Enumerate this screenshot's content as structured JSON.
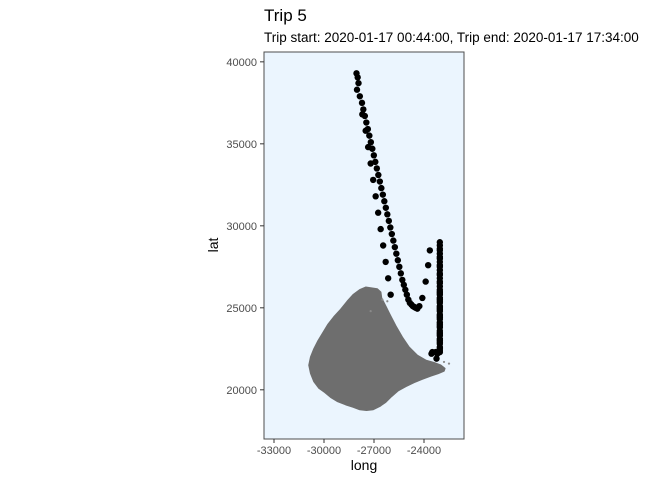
{
  "chart_data": {
    "type": "scatter",
    "title": "Trip 5",
    "subtitle": "Trip start: 2020-01-17 00:44:00, Trip end: 2020-01-17 17:34:00",
    "xlabel": "long",
    "ylabel": "lat",
    "xlim": [
      -33600,
      -21600
    ],
    "ylim": [
      17000,
      40600
    ],
    "x_ticks": [
      -33000,
      -30000,
      -27000,
      -24000
    ],
    "x_tick_labels": [
      "-33000",
      "-30000",
      "-27000",
      "-24000"
    ],
    "y_ticks": [
      20000,
      25000,
      30000,
      35000,
      40000
    ],
    "y_tick_labels": [
      "20000",
      "25000",
      "30000",
      "35000",
      "40000"
    ],
    "grid": false,
    "legend": "none",
    "colors": {
      "panel_background": "#ebf5fe",
      "panel_border": "#4d4d4d",
      "land": "#6e6e6e",
      "points": "#000000",
      "stray_points": "#8a8a8a"
    },
    "land_outline": [
      [
        -27150,
        26200
      ],
      [
        -26800,
        26150
      ],
      [
        -26600,
        25950
      ],
      [
        -26550,
        25600
      ],
      [
        -26300,
        25100
      ],
      [
        -26050,
        24600
      ],
      [
        -25700,
        23900
      ],
      [
        -25300,
        23200
      ],
      [
        -24900,
        22600
      ],
      [
        -24400,
        22100
      ],
      [
        -23900,
        21800
      ],
      [
        -23400,
        21650
      ],
      [
        -23000,
        21500
      ],
      [
        -22750,
        21300
      ],
      [
        -22800,
        21150
      ],
      [
        -23150,
        21000
      ],
      [
        -23600,
        20850
      ],
      [
        -24100,
        20650
      ],
      [
        -24600,
        20450
      ],
      [
        -25100,
        20200
      ],
      [
        -25550,
        19950
      ],
      [
        -25950,
        19600
      ],
      [
        -26300,
        19250
      ],
      [
        -26650,
        19000
      ],
      [
        -27050,
        18800
      ],
      [
        -27450,
        18750
      ],
      [
        -27850,
        18800
      ],
      [
        -28250,
        18950
      ],
      [
        -28700,
        19100
      ],
      [
        -29200,
        19300
      ],
      [
        -29600,
        19550
      ],
      [
        -29950,
        19850
      ],
      [
        -30300,
        20100
      ],
      [
        -30600,
        20500
      ],
      [
        -30800,
        21000
      ],
      [
        -30900,
        21500
      ],
      [
        -30800,
        22000
      ],
      [
        -30600,
        22500
      ],
      [
        -30350,
        23000
      ],
      [
        -30050,
        23500
      ],
      [
        -29750,
        24000
      ],
      [
        -29400,
        24450
      ],
      [
        -29000,
        24900
      ],
      [
        -28600,
        25400
      ],
      [
        -28250,
        25800
      ],
      [
        -27850,
        26100
      ],
      [
        -27500,
        26250
      ]
    ],
    "series": [
      {
        "x": [
          -28050,
          -27980,
          -27930,
          -28020,
          -27850,
          -27720,
          -27640,
          -27550,
          -27460,
          -27370,
          -27280,
          -27190,
          -27100,
          -27010,
          -26920,
          -26830,
          -26740,
          -26650,
          -26560,
          -26470,
          -26380,
          -26290,
          -26200,
          -26110,
          -26020,
          -25930,
          -25840,
          -25750,
          -25660,
          -25570,
          -25480,
          -25390,
          -25300,
          -25210,
          -25120,
          -25030,
          -24940,
          -24850,
          -24760,
          -24670,
          -24580,
          -24490,
          -24400,
          -27700,
          -27500,
          -27350,
          -27200,
          -27050,
          -26900,
          -26750,
          -26600,
          -26450,
          -26300,
          -26150,
          -26000,
          -24280,
          -24100,
          -23900,
          -23750,
          -23650,
          -23550,
          -23300,
          -23250,
          -23050,
          -23050,
          -23050,
          -23050,
          -23050,
          -23050,
          -23050,
          -23050,
          -23050,
          -23050,
          -23050,
          -23050,
          -23050,
          -23050,
          -23050,
          -23050,
          -23050,
          -23050,
          -23050,
          -23050,
          -23050,
          -23050,
          -23050,
          -23050,
          -23050,
          -23050,
          -23050,
          -23050,
          -23050,
          -23050,
          -23050,
          -23050,
          -23050,
          -23050,
          -23050,
          -23050,
          -23050,
          -23050,
          -23050,
          -23050,
          -23050,
          -23050,
          -23050,
          -23050,
          -23050,
          -23050,
          -23050,
          -23050,
          -23050,
          -23200,
          -23500
        ],
        "y": [
          39300,
          39050,
          38700,
          38300,
          37900,
          37500,
          37100,
          36700,
          36300,
          35900,
          35500,
          35100,
          34700,
          34300,
          33900,
          33500,
          33100,
          32700,
          32300,
          31900,
          31500,
          31100,
          30700,
          30300,
          29900,
          29500,
          29100,
          28700,
          28300,
          27900,
          27500,
          27100,
          26700,
          26400,
          26100,
          25800,
          25500,
          25300,
          25200,
          25100,
          25050,
          25000,
          24950,
          36800,
          35800,
          34800,
          33800,
          32800,
          31800,
          30800,
          29800,
          28800,
          27800,
          26800,
          25800,
          25100,
          25600,
          26600,
          27600,
          28500,
          22200,
          22300,
          21900,
          22300,
          22800,
          23300,
          23800,
          24300,
          24800,
          25300,
          25800,
          26300,
          26800,
          27300,
          27800,
          28300,
          28800,
          29000,
          22500,
          23000,
          23500,
          24000,
          24500,
          25000,
          25500,
          26000,
          26500,
          27000,
          27500,
          28000,
          28500,
          22600,
          23100,
          23600,
          24100,
          24600,
          25100,
          25600,
          26100,
          26600,
          27100,
          27600,
          28100,
          28600,
          22400,
          22900,
          23400,
          23900,
          24400,
          24900,
          25400,
          25900,
          22200,
          22300
        ]
      }
    ],
    "stray_points": {
      "x": [
        -26500,
        -26200,
        -27200,
        -22800,
        -22500
      ],
      "y": [
        25500,
        25400,
        24800,
        21700,
        21600
      ]
    }
  }
}
